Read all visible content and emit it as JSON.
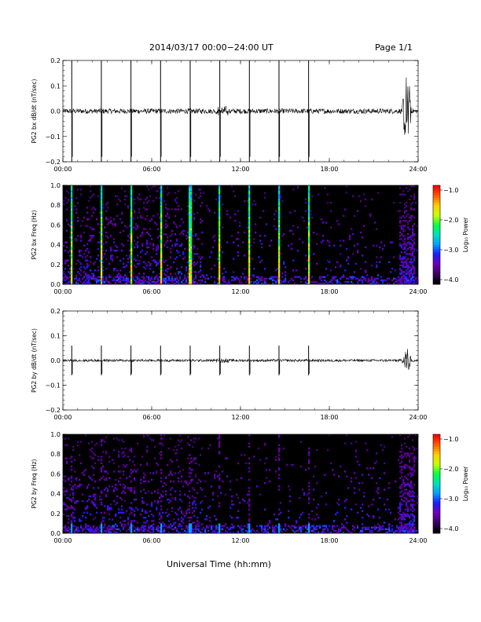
{
  "header": {
    "title": "2014/03/17   00:00−24:00 UT",
    "page": "Page 1/1"
  },
  "x_axis_title": "Universal Time (hh:mm)",
  "colorbar_label": "Log₁₀ Power",
  "colorbar_ticks": [
    "−1.0",
    "−2.0",
    "−3.0",
    "−4.0"
  ],
  "colormap": [
    "#000000",
    "#3a0066",
    "#6e00b8",
    "#1a1aff",
    "#00a0ff",
    "#00e0c0",
    "#00ff40",
    "#c8ff00",
    "#ffd000",
    "#ff6000",
    "#ff0000"
  ],
  "chart_data": [
    {
      "type": "line",
      "ylabel": "PG2 bx dB/dt (nT/sec)",
      "ylim": [
        -0.2,
        0.2
      ],
      "yticks": [
        "0.2",
        "0.1",
        "0.0",
        "−0.1",
        "−0.2"
      ],
      "xlim": [
        0,
        24
      ],
      "xticks": [
        "00:00",
        "06:00",
        "12:00",
        "18:00",
        "24:00"
      ],
      "spike_times_hr": [
        0.6,
        2.6,
        4.6,
        6.6,
        8.6,
        10.6,
        12.6,
        14.6,
        16.6
      ],
      "spike_amplitude": 0.2,
      "burst_window_hr": [
        22.9,
        23.6
      ],
      "burst_amplitude": 0.15,
      "noise_amplitude": 0.01
    },
    {
      "type": "heatmap",
      "ylabel": "PG2 bx Freq (Hz)",
      "ylim": [
        0.0,
        1.0
      ],
      "yticks": [
        "1.0",
        "0.8",
        "0.6",
        "0.4",
        "0.2",
        "0.0"
      ],
      "xlim": [
        0,
        24
      ],
      "xticks": [
        "00:00",
        "06:00",
        "12:00",
        "18:00",
        "24:00"
      ],
      "color_range_log": [
        -4.0,
        -1.0
      ],
      "vertical_streak_times_hr": [
        0.6,
        2.6,
        4.6,
        6.6,
        8.6,
        10.6,
        12.6,
        14.6,
        16.6
      ],
      "active_bands_hr": [
        [
          22.7,
          23.8
        ]
      ]
    },
    {
      "type": "line",
      "ylabel": "PG2 by dB/dt (nT/sec)",
      "ylim": [
        -0.2,
        0.2
      ],
      "yticks": [
        "0.2",
        "0.1",
        "0.0",
        "−0.1",
        "−0.2"
      ],
      "xlim": [
        0,
        24
      ],
      "xticks": [
        "00:00",
        "06:00",
        "12:00",
        "18:00",
        "24:00"
      ],
      "spike_times_hr": [
        0.6,
        2.6,
        4.6,
        6.6,
        8.6,
        10.6,
        12.6,
        14.6,
        16.6
      ],
      "spike_amplitude": 0.06,
      "burst_window_hr": [
        22.9,
        23.6
      ],
      "burst_amplitude": 0.05,
      "noise_amplitude": 0.005
    },
    {
      "type": "heatmap",
      "ylabel": "PG2 by Freq (Hz)",
      "ylim": [
        0.0,
        1.0
      ],
      "yticks": [
        "1.0",
        "0.8",
        "0.6",
        "0.4",
        "0.2",
        "0.0"
      ],
      "xlim": [
        0,
        24
      ],
      "xticks": [
        "00:00",
        "06:00",
        "12:00",
        "18:00",
        "24:00"
      ],
      "color_range_log": [
        -4.0,
        -1.0
      ],
      "vertical_streak_times_hr": [
        0.6,
        2.6,
        4.6,
        6.6,
        8.6,
        10.6,
        12.6,
        14.6,
        16.6
      ],
      "active_bands_hr": [
        [
          22.7,
          23.8
        ]
      ]
    }
  ]
}
